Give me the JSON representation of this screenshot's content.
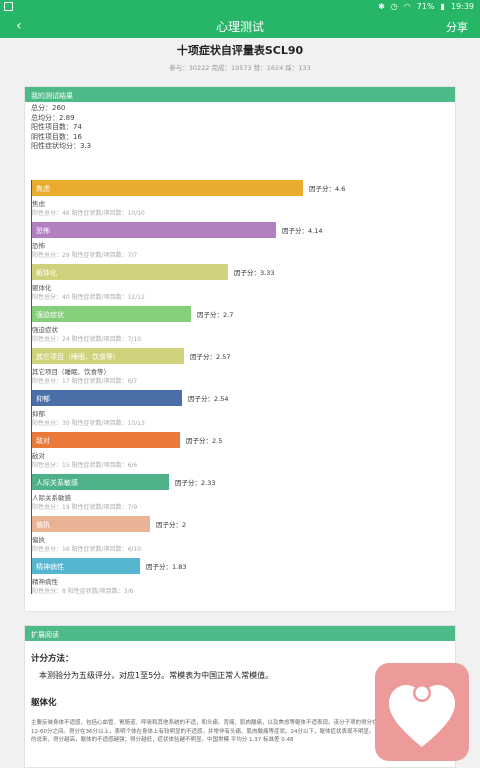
{
  "status_bar": {
    "battery": "71%",
    "time": "19:39"
  },
  "app_bar": {
    "back_icon": "‹",
    "title": "心理测试",
    "share": "分享"
  },
  "page": {
    "title": "十项症状自评量表SCL90",
    "meta": "参与：30222  完成：19573  赞：1624  踩：133"
  },
  "result_card": {
    "header": "我的测试结果",
    "summary": [
      "总分：260",
      "总均分：2.89",
      "阳性项目数：74",
      "阴性项目数：16",
      "阳性症状均分：3.3"
    ],
    "bars": [
      {
        "label": "焦虑",
        "name": "焦虑",
        "factor": "因子分：4.6",
        "score": 4.6,
        "stats": "阳性总分：46    阳性症状数/项目数：10/10",
        "color": "#e8ab2e"
      },
      {
        "label": "恐怖",
        "name": "恐怖",
        "factor": "因子分：4.14",
        "score": 4.14,
        "stats": "阳性总分：29    阳性症状数/项目数：7/7",
        "color": "#b27fc1"
      },
      {
        "label": "躯体化",
        "name": "躯体化",
        "factor": "因子分：3.33",
        "score": 3.33,
        "stats": "阳性总分：40    阳性症状数/项目数：12/12",
        "color": "#cfd27a"
      },
      {
        "label": "强迫症状",
        "name": "强迫症状",
        "factor": "因子分：2.7",
        "score": 2.7,
        "stats": "阳性总分：24    阳性症状数/项目数：7/10",
        "color": "#86cf7a"
      },
      {
        "label": "其它项目（睡眠、饮食等）",
        "name": "其它项目（睡眠、饮食等）",
        "factor": "因子分：2.57",
        "score": 2.57,
        "stats": "阳性总分：17    阳性症状数/项目数：6/7",
        "color": "#cfd27a"
      },
      {
        "label": "抑郁",
        "name": "抑郁",
        "factor": "因子分：2.54",
        "score": 2.54,
        "stats": "阳性总分：30    阳性症状数/项目数：10/13",
        "color": "#4a6ea8"
      },
      {
        "label": "敌对",
        "name": "敌对",
        "factor": "因子分：2.5",
        "score": 2.5,
        "stats": "阳性总分：15    阳性症状数/项目数：6/6",
        "color": "#e97a3a"
      },
      {
        "label": "人际关系敏感",
        "name": "人际关系敏感",
        "factor": "因子分：2.33",
        "score": 2.33,
        "stats": "阳性总分：19    阳性症状数/项目数：7/9",
        "color": "#4fb188"
      },
      {
        "label": "偏执",
        "name": "偏执",
        "factor": "因子分：2",
        "score": 2,
        "stats": "阳性总分：16    阳性症状数/项目数：6/10",
        "color": "#e8b395"
      },
      {
        "label": "精神病性",
        "name": "精神病性",
        "factor": "因子分：1.83",
        "score": 1.83,
        "stats": "阳性总分：8    阳性症状数/项目数：3/6",
        "color": "#56b6cf"
      }
    ]
  },
  "extended_card": {
    "header": "扩展阅读",
    "calc_title": "计分方法：",
    "calc_text": "本测验分为五级评分，对应1至5分。常模表为中国正常人常模值。",
    "section_title": "躯体化",
    "section_text": "主要反映身体不适感，包括心血管、胃肠道、呼吸和其他系统的不适，和头痛、背痛、肌肉酸痛，以及焦虑等躯体不适表现。该分子项的得分在12-60分之间。得分在36分以上，表明个体在身体上有较明显的不适感，并常伴有头痛、肌肉酸痛等症状。24分以下，躯体症状表现不明显。总的说来，得分越高，躯体的不适感越强；得分越低，症状体验越不明显。中国常模 平均分 1.37 标准差 0.48"
  },
  "float_button": {
    "icon": "heart-icon",
    "color": "#ec9a9a"
  }
}
